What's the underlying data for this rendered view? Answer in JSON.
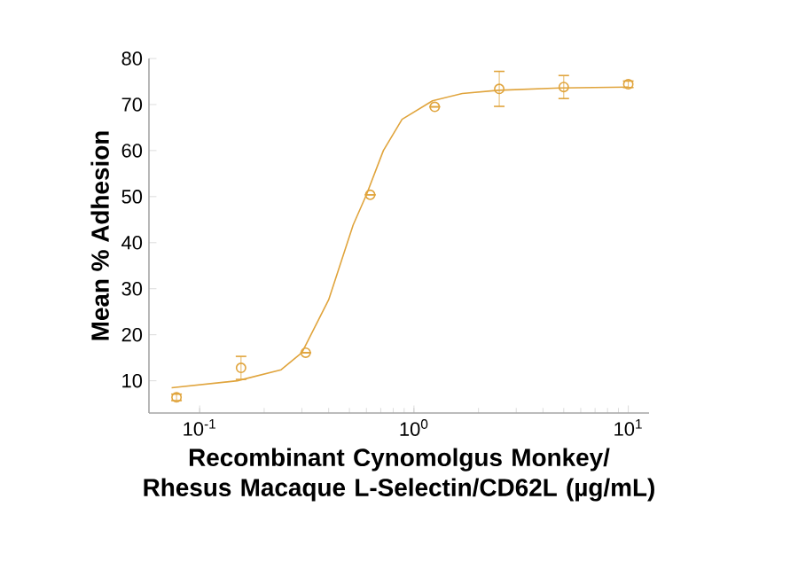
{
  "chart_data": {
    "type": "scatter",
    "xlabel": "Recombinant Cynomolgus Monkey/ Rhesus Macaque L-Selectin/CD62L (µg/mL)",
    "ylabel": "Mean % Adhesion",
    "log": "x",
    "xlim": [
      0.058,
      12.5
    ],
    "xticks": [
      {
        "value": 0.1,
        "label": "10$^{-1}$"
      },
      {
        "value": 1,
        "label": "10$^{0}$"
      },
      {
        "value": 10,
        "label": "10$^{1}$"
      }
    ],
    "ylim": [
      3,
      80
    ],
    "yticks": [
      10,
      20,
      30,
      40,
      50,
      60,
      70,
      80
    ],
    "grid": false,
    "series": [
      {
        "marker": "circle",
        "color": "#e0a43c",
        "x": [
          0.078,
          0.156,
          0.3125,
          0.625,
          1.25,
          2.5,
          5,
          10
        ],
        "values": [
          6.4,
          12.8,
          16.1,
          50.4,
          69.5,
          73.4,
          73.8,
          74.4
        ],
        "errors": [
          0.7,
          2.5,
          null,
          null,
          null,
          3.8,
          2.5,
          0.7
        ]
      },
      {
        "type": "line",
        "marker": "none",
        "color": "#e0a43c",
        "x": [
          0.074,
          0.15,
          0.24,
          0.3,
          0.4,
          0.52,
          0.6,
          0.72,
          0.88,
          1.22,
          1.68,
          2.47,
          4.8,
          10
        ],
        "values": [
          8.5,
          10,
          12.4,
          16.1,
          27.6,
          43.8,
          50.4,
          60,
          66.8,
          70.8,
          72.4,
          73.1,
          73.6,
          73.8
        ]
      }
    ]
  }
}
